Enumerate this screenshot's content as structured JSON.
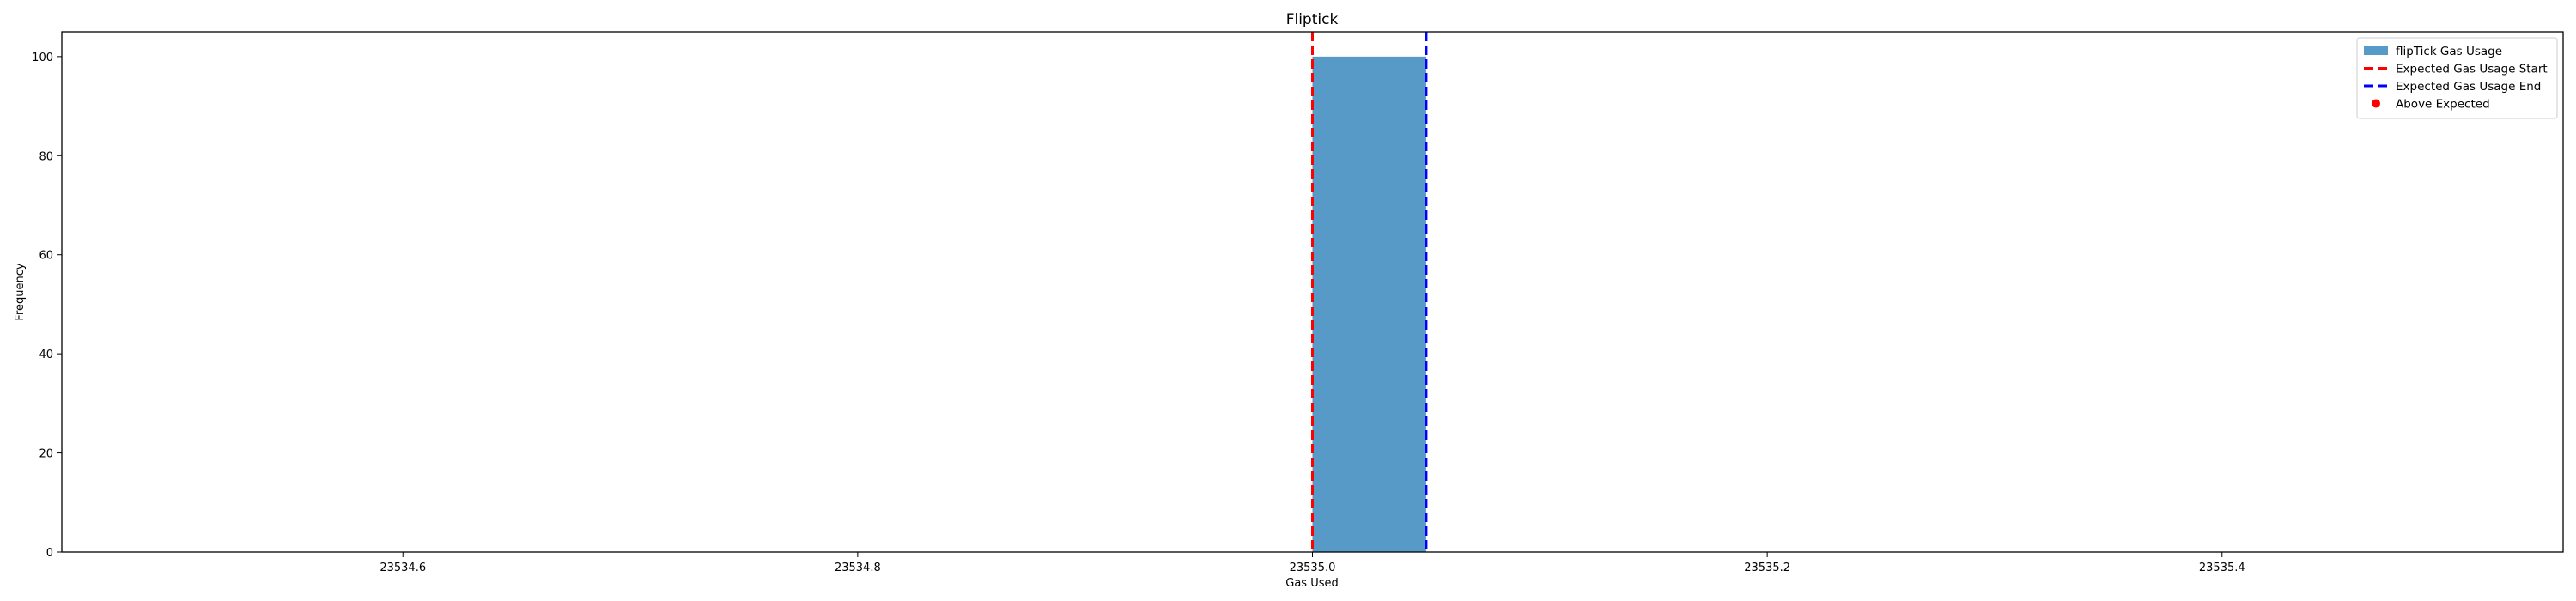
{
  "chart_data": {
    "type": "bar",
    "title": "Fliptick",
    "xlabel": "Gas Used",
    "ylabel": "Frequency",
    "xlim": [
      23534.45,
      23535.55
    ],
    "ylim": [
      0,
      105
    ],
    "xticks": [
      23534.6,
      23534.8,
      23535.0,
      23535.2,
      23535.4
    ],
    "xtick_labels": [
      "23534.6",
      "23534.8",
      "23535.0",
      "23535.2",
      "23535.4"
    ],
    "yticks": [
      0,
      20,
      40,
      60,
      80,
      100
    ],
    "ytick_labels": [
      "0",
      "20",
      "40",
      "60",
      "80",
      "100"
    ],
    "grid": false,
    "legend_position": "top-right",
    "series": [
      {
        "name": "flipTick Gas Usage",
        "kind": "histogram",
        "color": "#1f77b4",
        "bins": [
          {
            "start": 23535.0,
            "end": 23535.05,
            "count": 100
          }
        ]
      }
    ],
    "reference_lines": [
      {
        "name": "Expected Gas Usage Start",
        "x": 23535.0,
        "color": "#ff0000",
        "style": "dashed"
      },
      {
        "name": "Expected Gas Usage End",
        "x": 23535.05,
        "color": "#0000ff",
        "style": "dashed"
      }
    ],
    "points": [
      {
        "name": "Above Expected",
        "color": "#ff0000",
        "values": []
      }
    ],
    "legend": [
      {
        "label": "flipTick Gas Usage",
        "kind": "patch",
        "color": "#1f77b4"
      },
      {
        "label": "Expected Gas Usage Start",
        "kind": "dashed-line",
        "color": "#ff0000"
      },
      {
        "label": "Expected Gas Usage End",
        "kind": "dashed-line",
        "color": "#0000ff"
      },
      {
        "label": "Above Expected",
        "kind": "marker",
        "color": "#ff0000"
      }
    ]
  }
}
